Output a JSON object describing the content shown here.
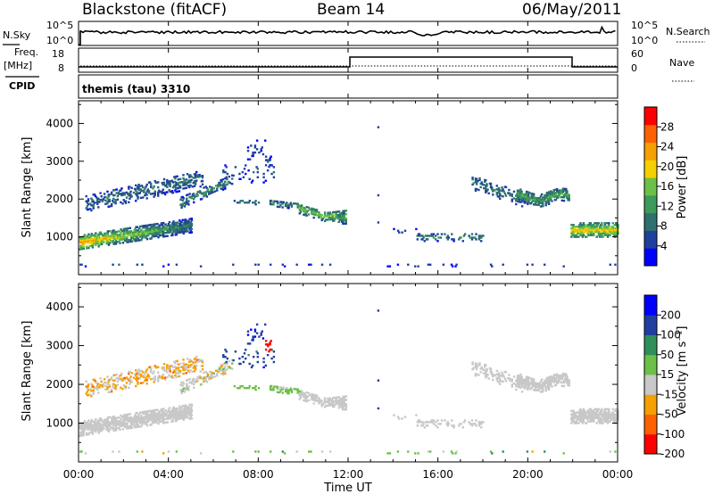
{
  "header": {
    "station": "Blackstone (fitACF)",
    "beam": "Beam 14",
    "date": "06/May/2011"
  },
  "top_panel": {
    "left_label": "N.Sky",
    "right_label": "N.Search",
    "left_ticks": [
      "10^5",
      "10^0"
    ],
    "right_ticks": [
      "10^5",
      "10^0"
    ]
  },
  "freq_panel": {
    "left_label_1": "Freq.",
    "left_label_2": "[MHz]",
    "right_label": "Nave",
    "left_ticks": [
      "18",
      "8"
    ],
    "right_ticks": [
      "60",
      "0"
    ]
  },
  "cpid_panel": {
    "label": "CPID",
    "text": "themis (tau) 3310"
  },
  "chart_data": [
    {
      "type": "heatmap",
      "name": "power-panel",
      "ylabel": "Slant Range [km]",
      "ylim": [
        0,
        4600
      ],
      "yticks": [
        "1000",
        "2000",
        "3000",
        "4000"
      ],
      "colorbar_label": "Power [dB]",
      "colorbar_ticks": [
        "4",
        "8",
        "12",
        "16",
        "20",
        "24",
        "28"
      ],
      "colorbar_range": [
        0,
        32
      ],
      "colors": [
        "#0000ff",
        "#1f3fa0",
        "#2e6f6f",
        "#3c9a5a",
        "#6cc048",
        "#f5d000",
        "#f5a000",
        "#ff6000",
        "#ff0000"
      ]
    },
    {
      "type": "heatmap",
      "name": "velocity-panel",
      "ylabel": "Slant Range [km]",
      "ylim": [
        0,
        4600
      ],
      "yticks": [
        "1000",
        "2000",
        "3000",
        "4000"
      ],
      "colorbar_label": "Velocity [m s⁻¹]",
      "colorbar_ticks": [
        "200",
        "100",
        "50",
        "15",
        "-15",
        "-50",
        "-100",
        "-200"
      ],
      "colors": [
        "#ff0000",
        "#ff6000",
        "#f5a000",
        "#c8c8c8",
        "#6cc048",
        "#2e8f5a",
        "#1f3fa0",
        "#0000ff"
      ]
    }
  ],
  "x_axis": {
    "ticks": [
      "00:00",
      "04:00",
      "08:00",
      "12:00",
      "16:00",
      "20:00",
      "00:00"
    ],
    "label": "Time UT"
  }
}
